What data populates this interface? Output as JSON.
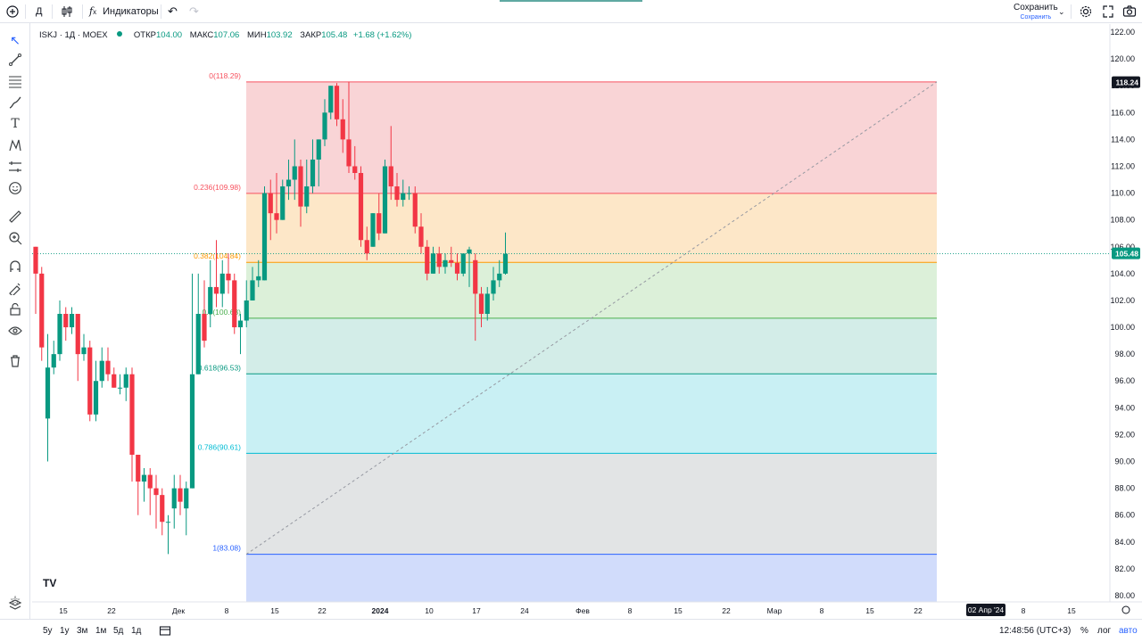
{
  "topbar": {
    "add_symbol_icon": "plus-circle-icon",
    "interval": "Д",
    "compare_icon": "candles-compare-icon",
    "indicators_label": "Индикаторы",
    "undo_icon": "undo-icon",
    "redo_icon": "redo-icon",
    "save_label": "Сохранить",
    "save_sublabel": "Сохранить",
    "settings_icon": "gear-icon",
    "fullscreen_icon": "fullscreen-icon",
    "snapshot_icon": "camera-icon"
  },
  "legend": {
    "symbol": "ISKJ · 1Д · MOEX",
    "open_label": "ОТКР",
    "open": "104.00",
    "high_label": "МАКС",
    "high": "107.06",
    "low_label": "МИН",
    "low": "103.92",
    "close_label": "ЗАКР",
    "close": "105.48",
    "change": "+1.68 (+1.62%)"
  },
  "left_tools": [
    "cursor-icon",
    "trend-line-icon",
    "fib-tools-icon",
    "brush-icon",
    "text-icon",
    "pattern-icon",
    "forecast-icon",
    "emoji-icon",
    "ruler-icon",
    "zoom-icon",
    "magnet-icon",
    "lock-drawing-icon",
    "lock-icon",
    "eye-icon",
    "trash-icon",
    "favorites-star-icon",
    "layers-icon"
  ],
  "colors": {
    "up": "#089981",
    "down": "#f23645",
    "fib_0": "#f7525f",
    "fib_236": "#f7525f",
    "fib_382": "#ff9800",
    "fib_5": "#4caf50",
    "fib_618": "#089981",
    "fib_786": "#00bcd4",
    "fib_1": "#2962ff"
  },
  "chart_data": {
    "type": "candlestick",
    "y_ticks": [
      "122.00",
      "120.00",
      "118.00",
      "116.00",
      "114.00",
      "112.00",
      "110.00",
      "108.00",
      "106.00",
      "104.00",
      "102.00",
      "100.00",
      "98.00",
      "96.00",
      "94.00",
      "92.00",
      "90.00",
      "88.00",
      "86.00",
      "84.00",
      "82.00",
      "80.00"
    ],
    "ylim": [
      79.5,
      122.5
    ],
    "x_ticks": [
      "15",
      "22",
      "Дек",
      "8",
      "15",
      "22",
      "2024",
      "10",
      "17",
      "24",
      "Фев",
      "8",
      "15",
      "22",
      "Мар",
      "8",
      "15",
      "22",
      "02 Апр '24",
      "8",
      "15"
    ],
    "last_price": "105.48",
    "high_marker": "118.24",
    "fib_levels": [
      {
        "ratio": "0",
        "price": 118.29,
        "label": "0(118.29)"
      },
      {
        "ratio": "0.236",
        "price": 109.98,
        "label": "0.236(109.98)"
      },
      {
        "ratio": "0.382",
        "price": 104.84,
        "label": "0.382(104.84)"
      },
      {
        "ratio": "0.5",
        "price": 100.68,
        "label": "0.5(100.68)"
      },
      {
        "ratio": "0.618",
        "price": 96.53,
        "label": "0.618(96.53)"
      },
      {
        "ratio": "0.786",
        "price": 90.61,
        "label": "0.786(90.61)"
      },
      {
        "ratio": "1",
        "price": 83.08,
        "label": "1(83.08)"
      }
    ],
    "candles": [
      {
        "o": 106.0,
        "h": 106.0,
        "c": 104.0,
        "l": 101.0
      },
      {
        "o": 104.0,
        "h": 104.5,
        "c": 98.5,
        "l": 97.5
      },
      {
        "o": 93.2,
        "h": 99.5,
        "c": 97.0,
        "l": 90.0
      },
      {
        "o": 97.0,
        "h": 99.0,
        "c": 98.0,
        "l": 96.5
      },
      {
        "o": 98.0,
        "h": 102.0,
        "c": 101.0,
        "l": 97.5
      },
      {
        "o": 101.0,
        "h": 101.5,
        "c": 100.0,
        "l": 99.0
      },
      {
        "o": 100.0,
        "h": 101.5,
        "c": 101.0,
        "l": 99.5
      },
      {
        "o": 101.0,
        "h": 101.0,
        "c": 98.0,
        "l": 96.0
      },
      {
        "o": 98.0,
        "h": 99.5,
        "c": 98.5,
        "l": 97.5
      },
      {
        "o": 98.5,
        "h": 99.0,
        "c": 93.5,
        "l": 93.0
      },
      {
        "o": 93.5,
        "h": 97.5,
        "c": 96.0,
        "l": 93.0
      },
      {
        "o": 96.0,
        "h": 98.5,
        "c": 97.5,
        "l": 95.5
      },
      {
        "o": 97.5,
        "h": 98.5,
        "c": 96.5,
        "l": 96.0
      },
      {
        "o": 96.5,
        "h": 97.0,
        "c": 95.5,
        "l": 95.5
      },
      {
        "o": 95.5,
        "h": 96.5,
        "c": 95.5,
        "l": 95.0
      },
      {
        "o": 95.5,
        "h": 97.0,
        "c": 96.5,
        "l": 94.5
      },
      {
        "o": 96.5,
        "h": 97.0,
        "c": 90.5,
        "l": 88.5
      },
      {
        "o": 90.5,
        "h": 90.5,
        "c": 88.5,
        "l": 86.0
      },
      {
        "o": 88.5,
        "h": 89.5,
        "c": 89.0,
        "l": 87.0
      },
      {
        "o": 89.0,
        "h": 89.5,
        "c": 88.0,
        "l": 86.0
      },
      {
        "o": 88.0,
        "h": 89.0,
        "c": 87.5,
        "l": 85.0
      },
      {
        "o": 87.5,
        "h": 88.0,
        "c": 85.5,
        "l": 84.5
      },
      {
        "o": 85.5,
        "h": 86.0,
        "c": 85.5,
        "l": 83.1
      },
      {
        "o": 86.5,
        "h": 89.0,
        "c": 88.0,
        "l": 85.0
      },
      {
        "o": 88.0,
        "h": 89.0,
        "c": 87.0,
        "l": 86.0
      },
      {
        "o": 86.5,
        "h": 88.5,
        "c": 88.0,
        "l": 84.5
      },
      {
        "o": 88.0,
        "h": 104.0,
        "c": 96.5,
        "l": 88.0
      },
      {
        "o": 96.5,
        "h": 104.0,
        "c": 101.0,
        "l": 96.5
      },
      {
        "o": 101.0,
        "h": 103.5,
        "c": 99.0,
        "l": 98.5
      },
      {
        "o": 101.0,
        "h": 105.0,
        "c": 103.0,
        "l": 100.0
      },
      {
        "o": 103.0,
        "h": 106.5,
        "c": 102.5,
        "l": 101.5
      },
      {
        "o": 102.5,
        "h": 105.0,
        "c": 104.0,
        "l": 101.5
      },
      {
        "o": 104.0,
        "h": 105.5,
        "c": 103.5,
        "l": 102.5
      },
      {
        "o": 103.5,
        "h": 104.0,
        "c": 100.0,
        "l": 99.5
      },
      {
        "o": 100.0,
        "h": 101.0,
        "c": 100.5,
        "l": 98.0
      },
      {
        "o": 100.5,
        "h": 103.5,
        "c": 102.0,
        "l": 100.0
      },
      {
        "o": 102.0,
        "h": 104.5,
        "c": 103.5,
        "l": 102.0
      },
      {
        "o": 103.5,
        "h": 105.0,
        "c": 103.8,
        "l": 103.0
      },
      {
        "o": 103.5,
        "h": 110.5,
        "c": 110.0,
        "l": 103.5
      },
      {
        "o": 110.0,
        "h": 111.0,
        "c": 108.5,
        "l": 106.5
      },
      {
        "o": 108.5,
        "h": 111.5,
        "c": 108.0,
        "l": 107.0
      },
      {
        "o": 108.0,
        "h": 111.0,
        "c": 110.5,
        "l": 108.0
      },
      {
        "o": 110.5,
        "h": 112.5,
        "c": 111.0,
        "l": 109.5
      },
      {
        "o": 111.0,
        "h": 114.0,
        "c": 112.0,
        "l": 109.5
      },
      {
        "o": 112.0,
        "h": 112.5,
        "c": 109.0,
        "l": 107.5
      },
      {
        "o": 109.0,
        "h": 112.5,
        "c": 110.5,
        "l": 108.5
      },
      {
        "o": 110.5,
        "h": 114.0,
        "c": 112.5,
        "l": 110.0
      },
      {
        "o": 112.5,
        "h": 114.0,
        "c": 114.0,
        "l": 110.5
      },
      {
        "o": 114.0,
        "h": 117.0,
        "c": 116.0,
        "l": 113.5
      },
      {
        "o": 116.0,
        "h": 118.0,
        "c": 118.0,
        "l": 115.5
      },
      {
        "o": 118.0,
        "h": 118.2,
        "c": 115.5,
        "l": 115.0
      },
      {
        "o": 115.5,
        "h": 117.0,
        "c": 114.0,
        "l": 113.0
      },
      {
        "o": 114.0,
        "h": 118.3,
        "c": 112.0,
        "l": 111.5
      },
      {
        "o": 112.0,
        "h": 113.5,
        "c": 111.5,
        "l": 111.0
      },
      {
        "o": 111.5,
        "h": 112.0,
        "c": 106.5,
        "l": 106.0
      },
      {
        "o": 106.5,
        "h": 107.5,
        "c": 105.5,
        "l": 105.0
      },
      {
        "o": 106.0,
        "h": 108.5,
        "c": 108.5,
        "l": 106.0
      },
      {
        "o": 108.5,
        "h": 110.0,
        "c": 107.0,
        "l": 106.5
      },
      {
        "o": 107.0,
        "h": 112.5,
        "c": 112.0,
        "l": 107.0
      },
      {
        "o": 112.0,
        "h": 115.0,
        "c": 110.5,
        "l": 109.5
      },
      {
        "o": 110.5,
        "h": 111.5,
        "c": 109.5,
        "l": 109.0
      },
      {
        "o": 109.5,
        "h": 111.0,
        "c": 110.0,
        "l": 109.0
      },
      {
        "o": 110.0,
        "h": 110.5,
        "c": 110.0,
        "l": 109.5
      },
      {
        "o": 110.0,
        "h": 110.5,
        "c": 107.5,
        "l": 107.0
      },
      {
        "o": 107.5,
        "h": 108.5,
        "c": 106.0,
        "l": 105.5
      },
      {
        "o": 106.0,
        "h": 106.5,
        "c": 104.0,
        "l": 103.5
      },
      {
        "o": 104.0,
        "h": 106.0,
        "c": 105.5,
        "l": 104.0
      },
      {
        "o": 105.5,
        "h": 106.0,
        "c": 104.5,
        "l": 104.0
      },
      {
        "o": 104.5,
        "h": 105.5,
        "c": 105.0,
        "l": 104.0
      },
      {
        "o": 105.0,
        "h": 106.0,
        "c": 104.8,
        "l": 104.5
      },
      {
        "o": 104.8,
        "h": 105.5,
        "c": 104.0,
        "l": 103.5
      },
      {
        "o": 104.0,
        "h": 105.5,
        "c": 105.5,
        "l": 103.8
      },
      {
        "o": 105.5,
        "h": 106.0,
        "c": 105.8,
        "l": 103.0
      },
      {
        "o": 105.0,
        "h": 105.5,
        "c": 102.5,
        "l": 99.0
      },
      {
        "o": 102.5,
        "h": 103.0,
        "c": 101.0,
        "l": 100.0
      },
      {
        "o": 101.0,
        "h": 103.0,
        "c": 102.5,
        "l": 100.5
      },
      {
        "o": 102.5,
        "h": 104.5,
        "c": 103.5,
        "l": 102.0
      },
      {
        "o": 103.5,
        "h": 105.0,
        "c": 104.0,
        "l": 103.0
      },
      {
        "o": 104.0,
        "h": 107.06,
        "c": 105.48,
        "l": 103.92
      }
    ]
  },
  "bottombar": {
    "ranges": [
      "5y",
      "1y",
      "3м",
      "1м",
      "5д",
      "1д"
    ],
    "goto_icon": "calendar-goto-icon",
    "time": "12:48:56 (UTC+3)",
    "percent": "%",
    "log": "лог",
    "auto": "авто"
  },
  "watermark": "TV"
}
